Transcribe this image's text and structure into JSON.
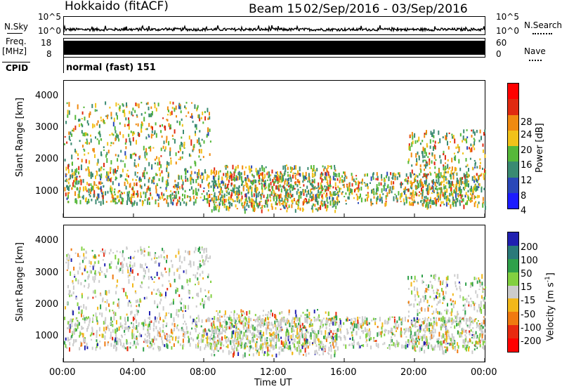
{
  "header": {
    "station": "Hokkaido (fitACF)",
    "beam_label": "Beam 15",
    "date_range": "02/Sep/2016 - 03/Sep/2016"
  },
  "noise_panel": {
    "left_label": "N.Sky",
    "right_label": "N.Search",
    "left_ticks": [
      "10^5",
      "10^0"
    ],
    "right_ticks": [
      "10^5",
      "10^0"
    ]
  },
  "freq_panel": {
    "left_label_line1": "Freq.",
    "left_label_line2": "[MHz]",
    "left_ticks": [
      "18",
      "8"
    ],
    "right_ticks": [
      "60",
      "0"
    ],
    "right_label": "Nave"
  },
  "cpid": {
    "label": "CPID",
    "value": "normal (fast) 151"
  },
  "chart_data": [
    {
      "type": "heatmap",
      "title": "",
      "ylabel": "Slant Range [km]",
      "y_ticks": [
        "1000",
        "2000",
        "3000",
        "4000"
      ],
      "ylim": [
        180,
        4500
      ],
      "colorbar": {
        "label": "Power [dB]",
        "tick_labels": [
          "4",
          "8",
          "12",
          "16",
          "20",
          "24",
          "28"
        ],
        "colors": [
          "#1c1cff",
          "#2a48b8",
          "#3a8a72",
          "#56b83a",
          "#f2c21a",
          "#f08a10",
          "#e02a10",
          "#ff0000"
        ]
      }
    },
    {
      "type": "heatmap",
      "title": "",
      "ylabel": "Slant Range [km]",
      "y_ticks": [
        "1000",
        "2000",
        "3000",
        "4000"
      ],
      "ylim": [
        180,
        4500
      ],
      "colorbar": {
        "label": "Velocity [m s^-1]",
        "tick_labels": [
          "200",
          "100",
          "50",
          "15",
          "-15",
          "-50",
          "-100",
          "-200"
        ],
        "colors": [
          "#2020b0",
          "#2a7a7a",
          "#2fa04a",
          "#82d040",
          "#cccccc",
          "#f2b81a",
          "#f07a10",
          "#e82a10",
          "#ff0000"
        ]
      }
    }
  ],
  "x_axis": {
    "label": "Time UT",
    "ticks": [
      "00:00",
      "04:00",
      "08:00",
      "12:00",
      "16:00",
      "20:00",
      "00:00"
    ]
  }
}
